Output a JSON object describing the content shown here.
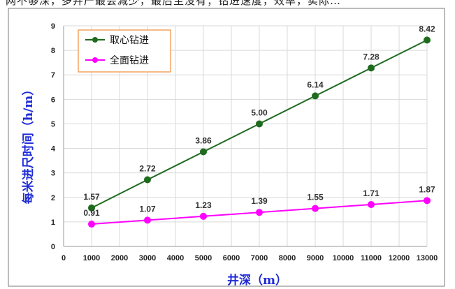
{
  "top_text": "网不够深，多井产最会减少，最后至没有；钻进速度，效率，实际…",
  "colors": {
    "series1": "#1e6b1e",
    "series2": "#ff00ff",
    "axis_title": "#1f2bd6",
    "legend_border": "#f4a460",
    "grid": "#d9d9d9",
    "border": "#7a7a7a"
  },
  "chart_data": {
    "type": "line",
    "xlabel": "井深（m）",
    "ylabel": "每米进尺时间（h/m）",
    "x_ticks": [
      0,
      1000,
      2000,
      3000,
      4000,
      5000,
      6000,
      7000,
      8000,
      9000,
      10000,
      11000,
      12000,
      13000
    ],
    "y_ticks": [
      0,
      1,
      2,
      3,
      4,
      5,
      6,
      7,
      8,
      9
    ],
    "xlim": [
      0,
      13000
    ],
    "ylim": [
      0,
      9
    ],
    "grid": true,
    "legend_position": "top-left",
    "series": [
      {
        "name": "取心钻进",
        "x": [
          1000,
          3000,
          5000,
          7000,
          9000,
          11000,
          13000
        ],
        "values": [
          1.57,
          2.72,
          3.86,
          5.0,
          6.14,
          7.28,
          8.42
        ],
        "labels": [
          "1.57",
          "2.72",
          "3.86",
          "5.00",
          "6.14",
          "7.28",
          "8.42"
        ]
      },
      {
        "name": "全面钻进",
        "x": [
          1000,
          3000,
          5000,
          7000,
          9000,
          11000,
          13000
        ],
        "values": [
          0.91,
          1.07,
          1.23,
          1.39,
          1.55,
          1.71,
          1.87
        ],
        "labels": [
          "0.91",
          "1.07",
          "1.23",
          "1.39",
          "1.55",
          "1.71",
          "1.87"
        ]
      }
    ]
  }
}
